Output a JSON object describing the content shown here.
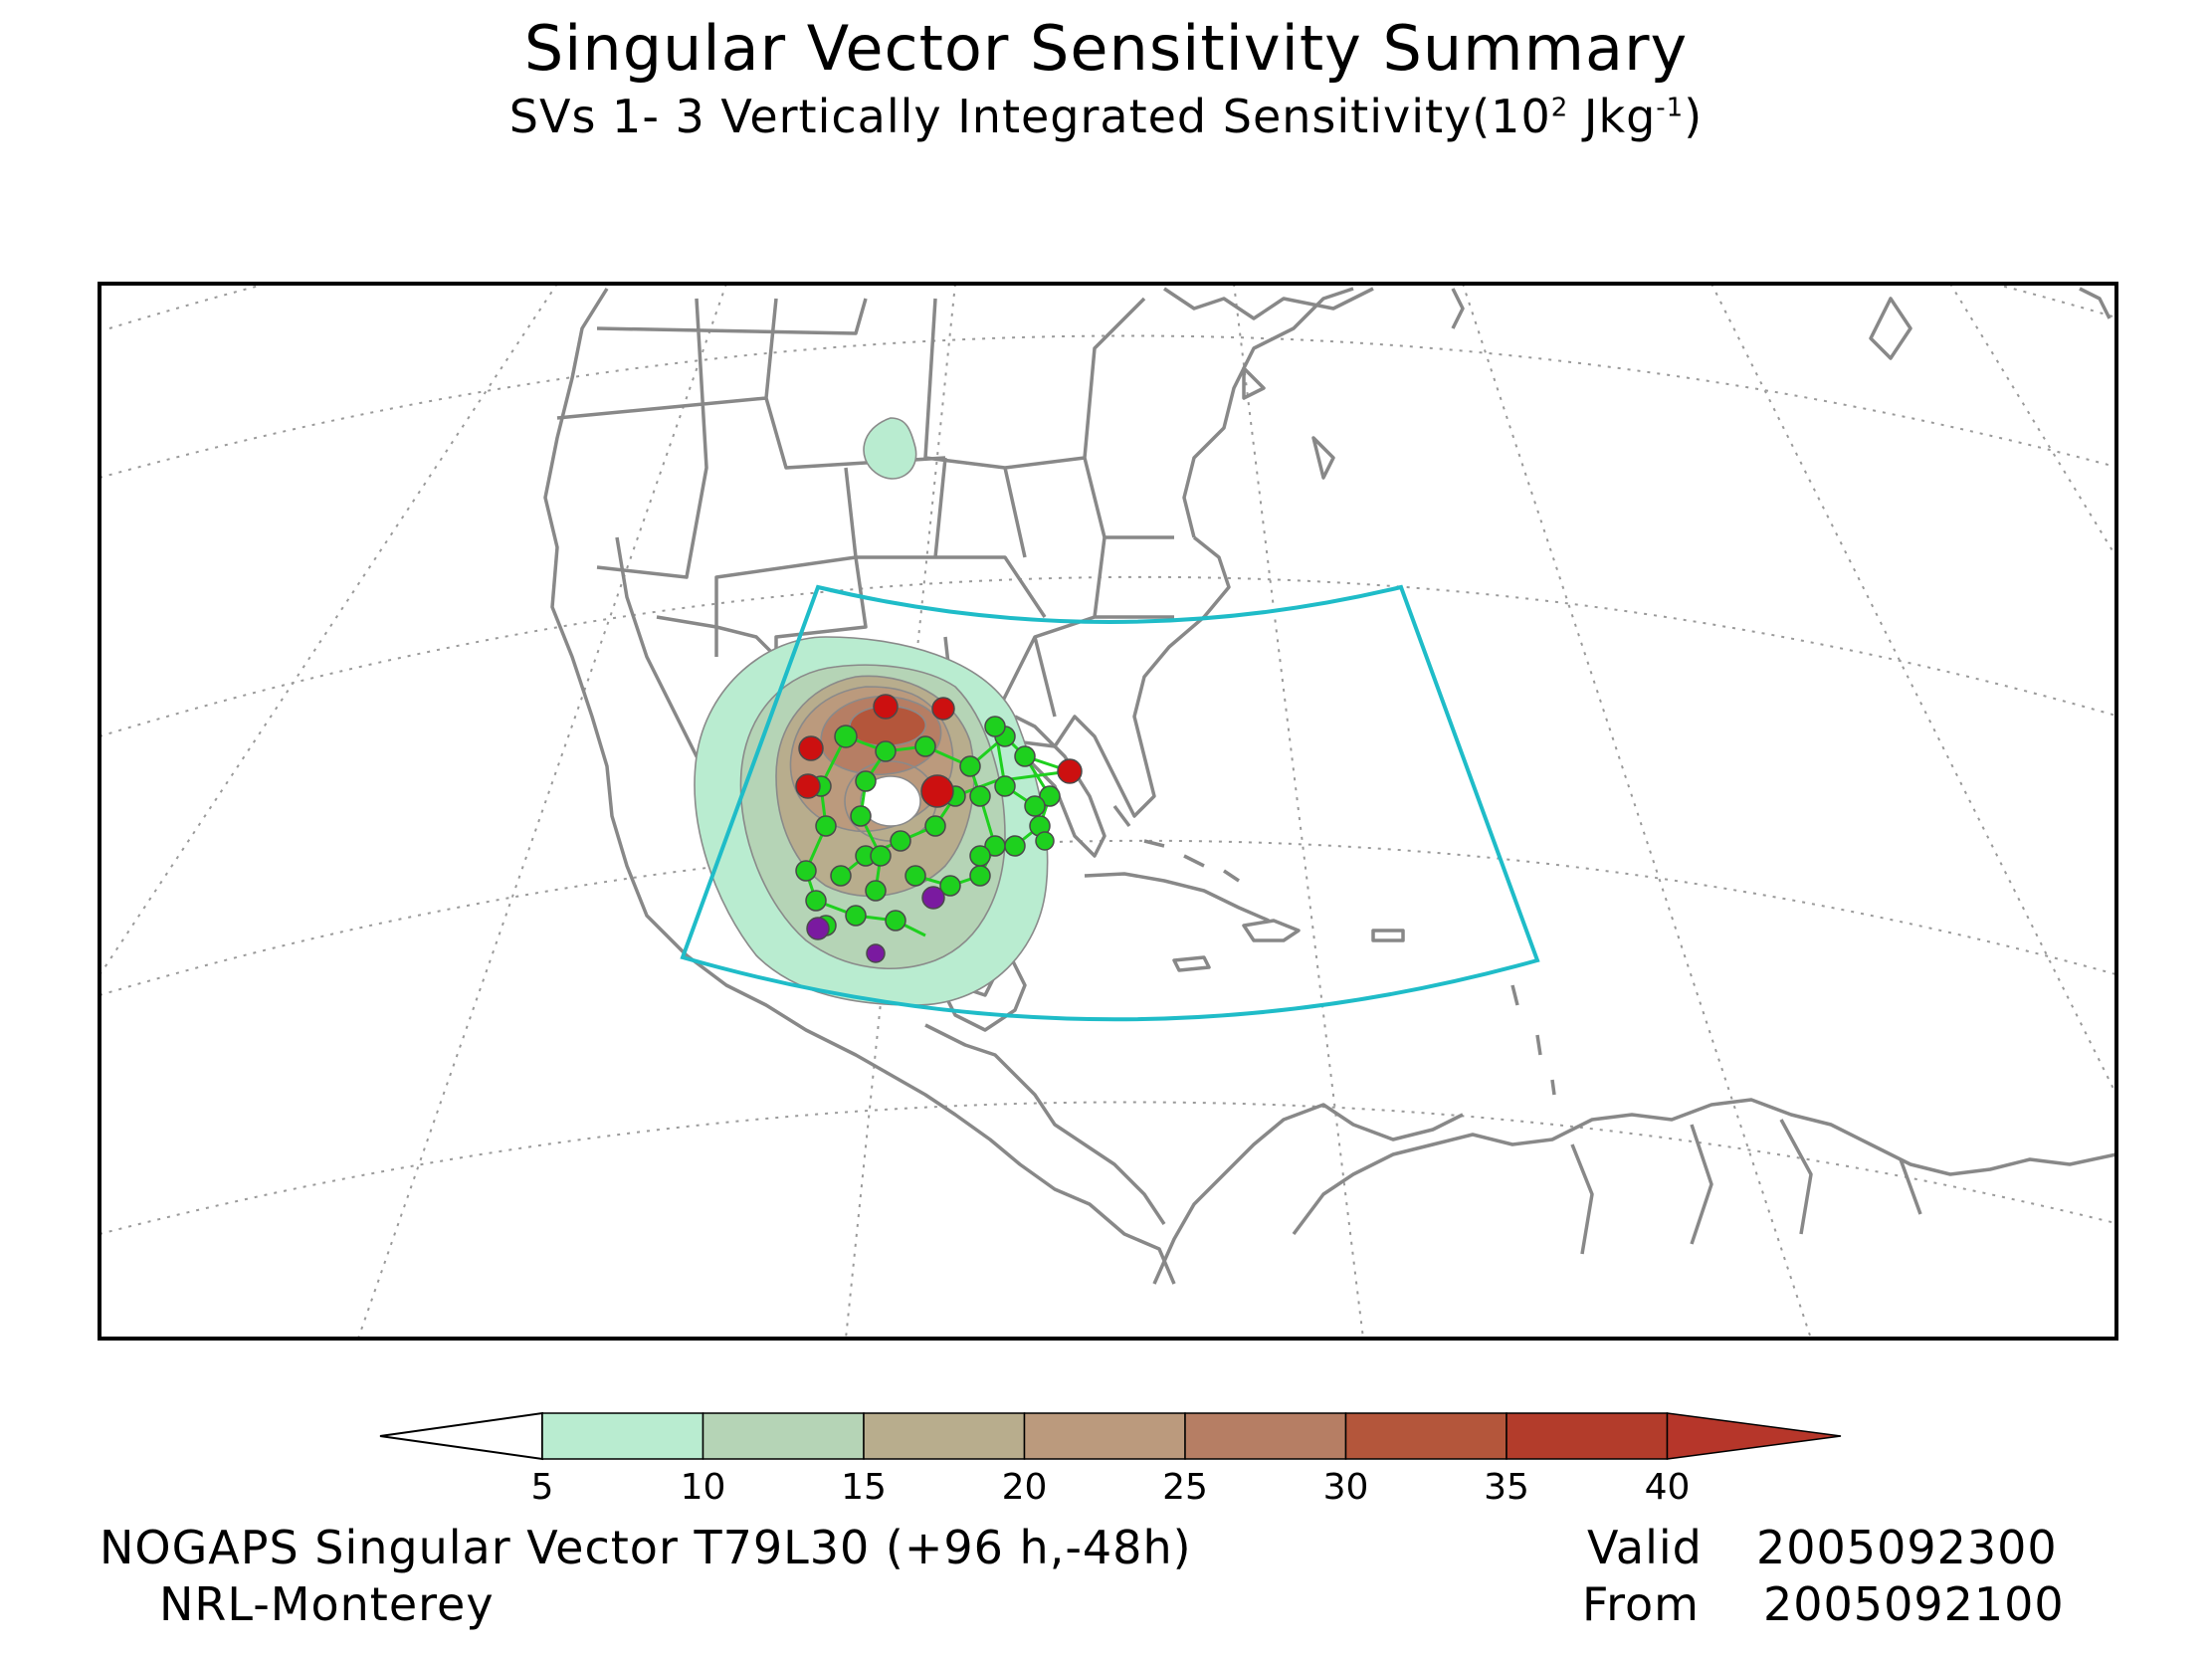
{
  "title": "Singular Vector Sensitivity Summary",
  "subtitle": {
    "prefix": "SVs 1- 3  Vertically Integrated Sensitivity(10",
    "exp": "2",
    "unit": " Jkg",
    "unit_exp": "-1",
    "suffix": ")"
  },
  "map": {
    "colors": {
      "frame": "#000000",
      "coast": "#888888",
      "grid": "#9a9a9a",
      "target_box": "#1fbcc8",
      "track_green": "#1ed01e",
      "marker_red": "#cc1010",
      "marker_purple": "#7a1aa0"
    },
    "target_box_visible": true
  },
  "colorbar": {
    "levels": [
      "5",
      "10",
      "15",
      "20",
      "25",
      "30",
      "35",
      "40"
    ],
    "colors": [
      "#ffffff",
      "#b9ecd0",
      "#b5d4b6",
      "#b8ad8d",
      "#bb9a7d",
      "#b67e64",
      "#b4563b",
      "#b33c2b",
      "#b6362a"
    ]
  },
  "footer": {
    "model": "NOGAPS Singular Vector T79L30 (+96 h,-48h)",
    "org": "NRL-Monterey",
    "valid_label": "Valid",
    "valid_value": "2005092300",
    "from_label": "From",
    "from_value": "2005092100"
  }
}
